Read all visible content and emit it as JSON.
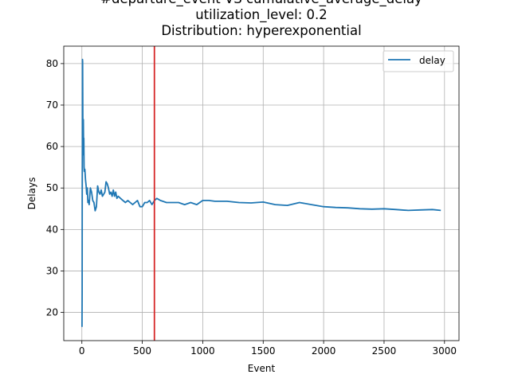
{
  "chart_data": {
    "type": "line",
    "title_lines": [
      "#departure_event VS cumulative_average_delay",
      "utilization_level: 0.2",
      "Distribution: hyperexponential"
    ],
    "xlabel": "Event",
    "ylabel": "Delays",
    "xlim": [
      -150,
      3120
    ],
    "ylim": [
      13.2,
      84.2
    ],
    "xticks": [
      0,
      500,
      1000,
      1500,
      2000,
      2500,
      3000
    ],
    "yticks": [
      20,
      30,
      40,
      50,
      60,
      70,
      80
    ],
    "grid": true,
    "legend_position": "top-right",
    "series": [
      {
        "name": "delay",
        "color": "#1f77b4",
        "x": [
          1,
          2,
          3,
          4,
          5,
          6,
          8,
          10,
          12,
          14,
          16,
          18,
          20,
          25,
          30,
          35,
          40,
          45,
          50,
          55,
          60,
          70,
          80,
          90,
          100,
          110,
          120,
          130,
          140,
          150,
          160,
          170,
          180,
          190,
          200,
          210,
          220,
          230,
          240,
          250,
          260,
          270,
          280,
          290,
          300,
          320,
          340,
          360,
          380,
          400,
          420,
          440,
          460,
          480,
          500,
          520,
          540,
          560,
          580,
          600,
          620,
          650,
          700,
          750,
          800,
          850,
          900,
          950,
          1000,
          1050,
          1100,
          1200,
          1300,
          1400,
          1500,
          1600,
          1700,
          1800,
          1900,
          2000,
          2100,
          2200,
          2300,
          2400,
          2500,
          2600,
          2700,
          2800,
          2900,
          2970
        ],
        "y": [
          16.5,
          25.0,
          48.0,
          60.0,
          81.0,
          80.5,
          65.0,
          58.0,
          66.5,
          60.0,
          62.0,
          55.0,
          54.0,
          54.5,
          52.0,
          50.5,
          48.5,
          50.0,
          46.5,
          47.0,
          46.0,
          50.0,
          49.0,
          47.0,
          46.5,
          44.5,
          45.5,
          50.5,
          49.0,
          48.5,
          49.5,
          48.0,
          48.5,
          49.0,
          51.5,
          51.0,
          50.0,
          48.5,
          49.0,
          48.0,
          49.5,
          48.0,
          49.0,
          47.5,
          48.0,
          47.5,
          47.0,
          46.5,
          47.0,
          46.5,
          46.0,
          46.5,
          47.0,
          45.5,
          45.5,
          46.5,
          46.5,
          47.0,
          46.0,
          47.0,
          47.5,
          47.0,
          46.5,
          46.5,
          46.5,
          46.0,
          46.5,
          46.0,
          47.0,
          47.0,
          46.8,
          46.8,
          46.5,
          46.4,
          46.6,
          46.0,
          45.8,
          46.5,
          46.0,
          45.5,
          45.3,
          45.2,
          45.0,
          44.9,
          45.0,
          44.8,
          44.6,
          44.7,
          44.8,
          44.6
        ]
      }
    ],
    "vline": {
      "x": 600,
      "color": "#d62728"
    }
  }
}
